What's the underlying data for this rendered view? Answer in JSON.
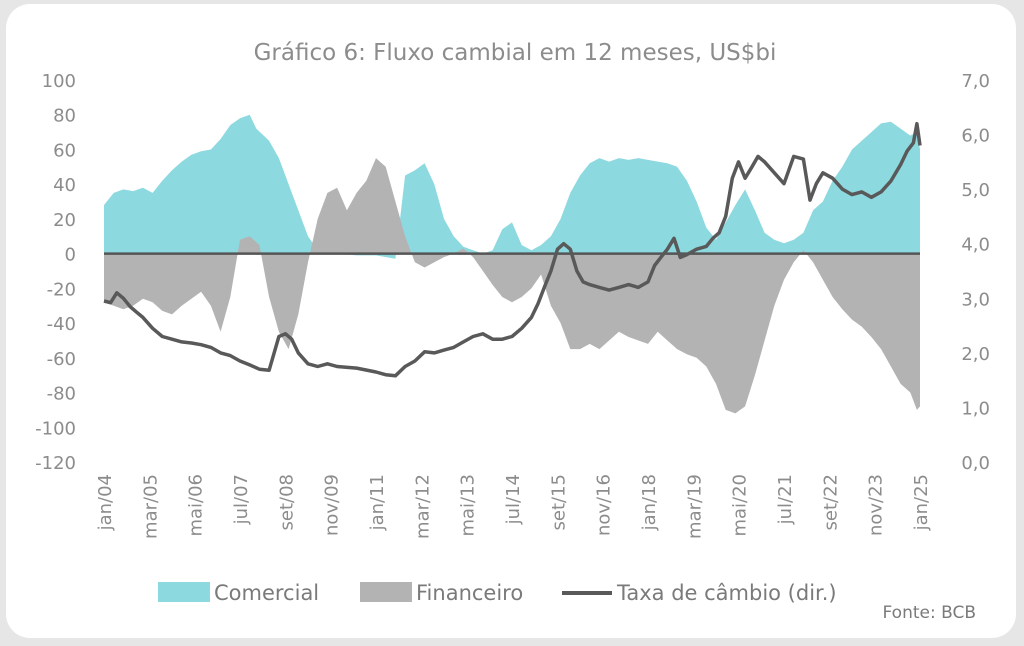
{
  "chart_data": {
    "type": "area",
    "title": "Gráfico 6: Fluxo cambial em 12 meses, US$bi",
    "source": "Fonte: BCB",
    "left_axis": {
      "ylim": [
        -120,
        100
      ],
      "ticks": [
        "100",
        "80",
        "60",
        "40",
        "20",
        "0",
        "-20",
        "-40",
        "-60",
        "-80",
        "-100",
        "-120"
      ],
      "tick_values": [
        100,
        80,
        60,
        40,
        20,
        0,
        -20,
        -40,
        -60,
        -80,
        -100,
        -120
      ]
    },
    "right_axis": {
      "ylim": [
        0,
        7
      ],
      "ticks": [
        "7,0",
        "6,0",
        "5,0",
        "4,0",
        "3,0",
        "2,0",
        "1,0",
        "0,0"
      ],
      "tick_values": [
        7,
        6,
        5,
        4,
        3,
        2,
        1,
        0
      ]
    },
    "x_ticks": [
      {
        "label": "jan/04",
        "t": 2004.0
      },
      {
        "label": "mar/05",
        "t": 2005.17
      },
      {
        "label": "mai/06",
        "t": 2006.33
      },
      {
        "label": "jul/07",
        "t": 2007.5
      },
      {
        "label": "set/08",
        "t": 2008.67
      },
      {
        "label": "nov/09",
        "t": 2009.83
      },
      {
        "label": "jan/11",
        "t": 2011.0
      },
      {
        "label": "mar/12",
        "t": 2012.17
      },
      {
        "label": "mai/13",
        "t": 2013.33
      },
      {
        "label": "jul/14",
        "t": 2014.5
      },
      {
        "label": "set/15",
        "t": 2015.67
      },
      {
        "label": "nov/16",
        "t": 2016.83
      },
      {
        "label": "jan/18",
        "t": 2018.0
      },
      {
        "label": "mar/19",
        "t": 2019.17
      },
      {
        "label": "mai/20",
        "t": 2020.33
      },
      {
        "label": "jul/21",
        "t": 2021.5
      },
      {
        "label": "set/22",
        "t": 2022.67
      },
      {
        "label": "nov/23",
        "t": 2023.83
      },
      {
        "label": "jan/25",
        "t": 2025.0
      }
    ],
    "series": [
      {
        "name": "Comercial",
        "axis": "left",
        "color": "#8dd9e0",
        "x": [
          2004.0,
          2004.25,
          2004.5,
          2004.75,
          2005.0,
          2005.25,
          2005.5,
          2005.75,
          2006.0,
          2006.25,
          2006.5,
          2006.75,
          2007.0,
          2007.25,
          2007.5,
          2007.75,
          2007.92,
          2008.25,
          2008.5,
          2008.75,
          2009.0,
          2009.25,
          2009.5,
          2009.75,
          2010.0,
          2010.5,
          2011.0,
          2011.5,
          2011.75,
          2012.0,
          2012.25,
          2012.5,
          2012.75,
          2013.0,
          2013.25,
          2013.5,
          2013.75,
          2014.0,
          2014.25,
          2014.5,
          2014.75,
          2015.0,
          2015.25,
          2015.5,
          2015.75,
          2016.0,
          2016.25,
          2016.5,
          2016.75,
          2017.0,
          2017.25,
          2017.5,
          2017.75,
          2018.0,
          2018.25,
          2018.5,
          2018.75,
          2019.0,
          2019.25,
          2019.5,
          2019.75,
          2020.0,
          2020.25,
          2020.5,
          2020.75,
          2021.0,
          2021.25,
          2021.5,
          2021.75,
          2022.0,
          2022.25,
          2022.5,
          2022.75,
          2023.0,
          2023.25,
          2023.5,
          2023.75,
          2024.0,
          2024.25,
          2024.5,
          2024.75,
          2024.92,
          2025.0
        ],
        "values": [
          28,
          35,
          37,
          36,
          38,
          35,
          42,
          48,
          53,
          57,
          59,
          60,
          66,
          74,
          78,
          80,
          72,
          65,
          55,
          40,
          25,
          10,
          2,
          0,
          0,
          -1,
          -1,
          -3,
          45,
          48,
          52,
          40,
          20,
          10,
          4,
          2,
          0,
          2,
          14,
          18,
          5,
          2,
          5,
          10,
          20,
          35,
          45,
          52,
          55,
          53,
          55,
          54,
          55,
          54,
          53,
          52,
          50,
          42,
          30,
          15,
          8,
          18,
          28,
          37,
          25,
          12,
          8,
          6,
          8,
          12,
          25,
          30,
          42,
          50,
          60,
          65,
          70,
          75,
          76,
          72,
          68,
          70,
          60
        ]
      },
      {
        "name": "Financeiro",
        "axis": "left",
        "color": "#b3b3b3",
        "x": [
          2004.0,
          2004.25,
          2004.5,
          2004.75,
          2005.0,
          2005.25,
          2005.5,
          2005.75,
          2006.0,
          2006.25,
          2006.5,
          2006.75,
          2007.0,
          2007.25,
          2007.5,
          2007.75,
          2008.0,
          2008.25,
          2008.5,
          2008.75,
          2009.0,
          2009.25,
          2009.5,
          2009.75,
          2010.0,
          2010.25,
          2010.5,
          2010.75,
          2011.0,
          2011.25,
          2011.5,
          2011.75,
          2012.0,
          2012.25,
          2012.5,
          2012.75,
          2013.0,
          2013.25,
          2013.5,
          2013.75,
          2014.0,
          2014.25,
          2014.5,
          2014.75,
          2015.0,
          2015.25,
          2015.5,
          2015.75,
          2016.0,
          2016.25,
          2016.5,
          2016.75,
          2017.0,
          2017.25,
          2017.5,
          2017.75,
          2018.0,
          2018.25,
          2018.5,
          2018.75,
          2019.0,
          2019.25,
          2019.5,
          2019.75,
          2020.0,
          2020.25,
          2020.5,
          2020.75,
          2021.0,
          2021.25,
          2021.5,
          2021.75,
          2022.0,
          2022.25,
          2022.5,
          2022.75,
          2023.0,
          2023.25,
          2023.5,
          2023.75,
          2024.0,
          2024.25,
          2024.5,
          2024.75,
          2024.92,
          2025.0
        ],
        "values": [
          -28,
          -30,
          -32,
          -30,
          -26,
          -28,
          -33,
          -35,
          -30,
          -26,
          -22,
          -30,
          -45,
          -25,
          8,
          10,
          5,
          -25,
          -45,
          -55,
          -35,
          -5,
          20,
          35,
          38,
          25,
          35,
          42,
          55,
          50,
          30,
          10,
          -5,
          -8,
          -5,
          -2,
          0,
          3,
          -2,
          -10,
          -18,
          -25,
          -28,
          -25,
          -20,
          -12,
          -30,
          -40,
          -55,
          -55,
          -52,
          -55,
          -50,
          -45,
          -48,
          -50,
          -52,
          -45,
          -50,
          -55,
          -58,
          -60,
          -65,
          -75,
          -90,
          -92,
          -88,
          -70,
          -50,
          -30,
          -15,
          -5,
          2,
          -5,
          -15,
          -25,
          -32,
          -38,
          -42,
          -48,
          -55,
          -65,
          -75,
          -80,
          -90,
          -88
        ]
      },
      {
        "name": "Taxa de câmbio (dir.)",
        "axis": "right",
        "color": "#595959",
        "x": [
          2004.0,
          2004.17,
          2004.33,
          2004.5,
          2004.67,
          2004.83,
          2005.0,
          2005.25,
          2005.5,
          2005.75,
          2006.0,
          2006.25,
          2006.5,
          2006.75,
          2007.0,
          2007.25,
          2007.5,
          2007.75,
          2008.0,
          2008.25,
          2008.5,
          2008.67,
          2008.83,
          2009.0,
          2009.25,
          2009.5,
          2009.75,
          2010.0,
          2010.5,
          2011.0,
          2011.25,
          2011.5,
          2011.75,
          2012.0,
          2012.25,
          2012.5,
          2012.75,
          2013.0,
          2013.25,
          2013.5,
          2013.75,
          2014.0,
          2014.25,
          2014.5,
          2014.75,
          2015.0,
          2015.17,
          2015.33,
          2015.5,
          2015.67,
          2015.83,
          2016.0,
          2016.17,
          2016.33,
          2016.5,
          2016.75,
          2017.0,
          2017.25,
          2017.5,
          2017.75,
          2018.0,
          2018.17,
          2018.33,
          2018.5,
          2018.67,
          2018.83,
          2019.0,
          2019.25,
          2019.5,
          2019.67,
          2019.83,
          2020.0,
          2020.17,
          2020.33,
          2020.5,
          2020.67,
          2020.83,
          2021.0,
          2021.25,
          2021.5,
          2021.75,
          2022.0,
          2022.17,
          2022.33,
          2022.5,
          2022.75,
          2023.0,
          2023.25,
          2023.5,
          2023.75,
          2024.0,
          2024.25,
          2024.5,
          2024.67,
          2024.83,
          2024.92,
          2025.0
        ],
        "values": [
          2.95,
          2.92,
          3.1,
          3.0,
          2.85,
          2.75,
          2.65,
          2.45,
          2.3,
          2.25,
          2.2,
          2.18,
          2.15,
          2.1,
          2.0,
          1.95,
          1.85,
          1.78,
          1.7,
          1.68,
          2.3,
          2.35,
          2.25,
          2.0,
          1.8,
          1.75,
          1.8,
          1.75,
          1.72,
          1.65,
          1.6,
          1.58,
          1.75,
          1.85,
          2.02,
          2.0,
          2.05,
          2.1,
          2.2,
          2.3,
          2.35,
          2.25,
          2.25,
          2.3,
          2.45,
          2.65,
          2.9,
          3.2,
          3.5,
          3.9,
          4.0,
          3.9,
          3.5,
          3.3,
          3.25,
          3.2,
          3.15,
          3.2,
          3.25,
          3.2,
          3.3,
          3.6,
          3.75,
          3.9,
          4.1,
          3.75,
          3.8,
          3.9,
          3.95,
          4.1,
          4.2,
          4.5,
          5.2,
          5.5,
          5.2,
          5.4,
          5.6,
          5.5,
          5.3,
          5.1,
          5.6,
          5.55,
          4.8,
          5.1,
          5.3,
          5.2,
          5.0,
          4.9,
          4.95,
          4.85,
          4.95,
          5.15,
          5.45,
          5.7,
          5.85,
          6.2,
          5.8
        ]
      }
    ]
  }
}
